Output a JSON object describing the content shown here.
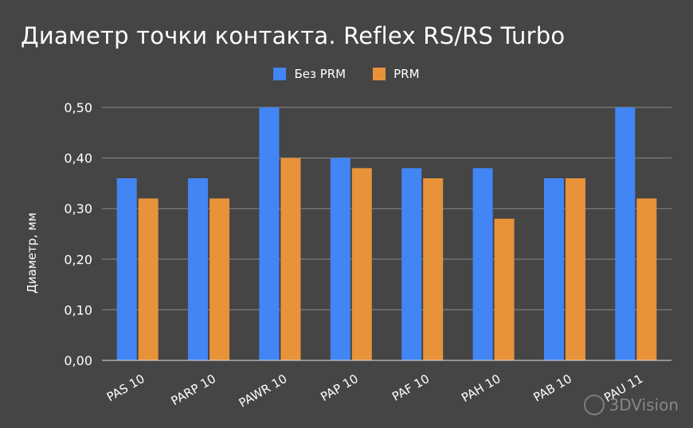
{
  "chart_data": {
    "type": "bar",
    "title": "Диаметр точки контакта. Reflex RS/RS Turbo",
    "ylabel": "Диаметр, мм",
    "xlabel": "",
    "categories": [
      "PAS 10",
      "PARP 10",
      "PAWR 10",
      "PAP 10",
      "PAF 10",
      "PAH 10",
      "PAB 10",
      "PAU 11"
    ],
    "series": [
      {
        "name": "Без PRM",
        "color": "#4285f4",
        "values": [
          0.36,
          0.36,
          0.5,
          0.4,
          0.38,
          0.38,
          0.36,
          0.5
        ]
      },
      {
        "name": "PRM",
        "color": "#e8923a",
        "values": [
          0.32,
          0.32,
          0.4,
          0.38,
          0.36,
          0.28,
          0.36,
          0.32
        ]
      }
    ],
    "ylim": [
      0,
      0.5
    ],
    "yticks": [
      "0,00",
      "0,10",
      "0,20",
      "0,30",
      "0,40",
      "0,50"
    ],
    "ytick_values": [
      0,
      0.1,
      0.2,
      0.3,
      0.4,
      0.5
    ],
    "grid": true,
    "legend_position": "top-center"
  },
  "watermark": {
    "text": "3DVision",
    "icon": "3dvision-logo-icon"
  }
}
